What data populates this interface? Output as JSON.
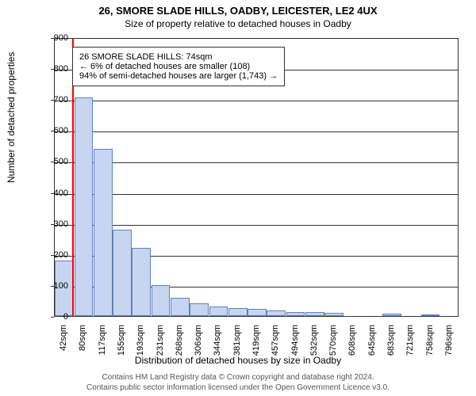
{
  "chart": {
    "type": "histogram",
    "title": "26, SMORE SLADE HILLS, OADBY, LEICESTER, LE2 4UX",
    "subtitle": "Size of property relative to detached houses in Oadby",
    "y_label": "Number of detached properties",
    "x_label": "Distribution of detached houses by size in Oadby",
    "ylim": [
      0,
      900
    ],
    "ytick_step": 100,
    "y_ticks": [
      0,
      100,
      200,
      300,
      400,
      500,
      600,
      700,
      800,
      900
    ],
    "x_ticks": [
      "42sqm",
      "80sqm",
      "117sqm",
      "155sqm",
      "193sqm",
      "231sqm",
      "268sqm",
      "306sqm",
      "344sqm",
      "381sqm",
      "419sqm",
      "457sqm",
      "494sqm",
      "532sqm",
      "570sqm",
      "608sqm",
      "645sqm",
      "683sqm",
      "721sqm",
      "758sqm",
      "796sqm"
    ],
    "bar_values": [
      180,
      705,
      540,
      280,
      220,
      100,
      60,
      40,
      32,
      26,
      22,
      18,
      14,
      12,
      10,
      0,
      0,
      8,
      0,
      6,
      0
    ],
    "bar_color": "#c8d5f0",
    "bar_border_color": "#6080c0",
    "grid_color": "#333333",
    "background_color": "#ffffff",
    "highlight_line_color": "#ff0000",
    "highlight_x_position_sqm": 74,
    "info_box": {
      "line1": "26 SMORE SLADE HILLS: 74sqm",
      "line2": "← 6% of detached houses are smaller (108)",
      "line3": "94% of semi-detached houses are larger (1,743) →"
    },
    "title_fontsize": 13,
    "label_fontsize": 12,
    "tick_fontsize": 11,
    "info_fontsize": 11
  },
  "footer": {
    "line1": "Contains HM Land Registry data © Crown copyright and database right 2024.",
    "line2": "Contains public sector information licensed under the Open Government Licence v3.0."
  }
}
